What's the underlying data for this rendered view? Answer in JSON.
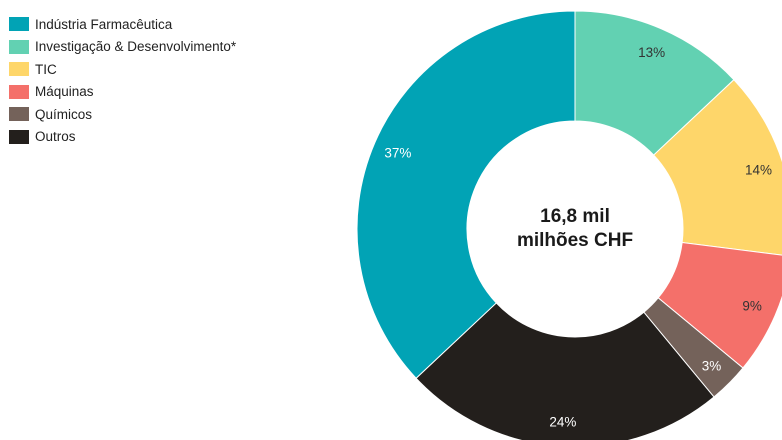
{
  "chart_data": {
    "type": "pie",
    "center_label": [
      "16,8 mil",
      "milhões CHF"
    ],
    "legend_position": "top-left",
    "slices": [
      {
        "name": "Investigação & Desenvolvimento*",
        "value": 13,
        "label": "13%",
        "color": "#62d1b2",
        "label_color": "#333333"
      },
      {
        "name": "TIC",
        "value": 14,
        "label": "14%",
        "color": "#fed66a",
        "label_color": "#333333"
      },
      {
        "name": "Máquinas",
        "value": 9,
        "label": "9%",
        "color": "#f4706a",
        "label_color": "#333333"
      },
      {
        "name": "Químicos",
        "value": 3,
        "label": "3%",
        "color": "#74625a",
        "label_color": "#ffffff"
      },
      {
        "name": "Outros",
        "value": 24,
        "label": "24%",
        "color": "#231f1c",
        "label_color": "#ffffff"
      },
      {
        "name": "Indústria Farmacêutica",
        "value": 37,
        "label": "37%",
        "color": "#01a3b5",
        "label_color": "#ffffff"
      }
    ]
  },
  "legend": [
    {
      "label": "Indústria Farmacêutica",
      "color": "#01a3b5"
    },
    {
      "label": "Investigação & Desenvolvimento*",
      "color": "#62d1b2"
    },
    {
      "label": "TIC",
      "color": "#fed66a"
    },
    {
      "label": "Máquinas",
      "color": "#f4706a"
    },
    {
      "label": "Químicos",
      "color": "#74625a"
    },
    {
      "label": "Outros",
      "color": "#231f1c"
    }
  ]
}
